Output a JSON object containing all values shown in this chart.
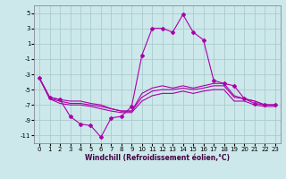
{
  "title": "",
  "xlabel": "Windchill (Refroidissement éolien,°C)",
  "bg_color": "#cce8ea",
  "grid_color": "#aacccc",
  "line_color": "#aa00aa",
  "x": [
    0,
    1,
    2,
    3,
    4,
    5,
    6,
    7,
    8,
    9,
    10,
    11,
    12,
    13,
    14,
    15,
    16,
    17,
    18,
    19,
    20,
    21,
    22,
    23
  ],
  "ylim": [
    -12,
    6
  ],
  "yticks": [
    -11,
    -9,
    -7,
    -5,
    -3,
    -1,
    1,
    3,
    5
  ],
  "xlim": [
    -0.5,
    23.5
  ],
  "series": [
    [
      -3.5,
      -6.0,
      -6.3,
      -8.5,
      -9.5,
      -9.7,
      -11.2,
      -8.7,
      -8.5,
      -7.2,
      -0.5,
      3.0,
      3.0,
      2.5,
      4.8,
      2.5,
      1.5,
      -3.8,
      -4.2,
      -4.5,
      -6.2,
      -6.8,
      -7.0,
      -7.0
    ],
    [
      -3.5,
      -6.0,
      -6.3,
      -6.5,
      -6.5,
      -6.8,
      -7.0,
      -7.5,
      -7.8,
      -7.8,
      -5.5,
      -4.8,
      -4.5,
      -4.8,
      -4.5,
      -4.8,
      -4.5,
      -4.2,
      -4.2,
      -5.8,
      -6.2,
      -6.5,
      -7.0,
      -7.0
    ],
    [
      -3.5,
      -6.2,
      -6.5,
      -6.8,
      -6.8,
      -7.0,
      -7.2,
      -7.5,
      -7.8,
      -7.8,
      -6.0,
      -5.2,
      -5.0,
      -5.0,
      -4.8,
      -5.0,
      -4.8,
      -4.5,
      -4.5,
      -6.0,
      -6.2,
      -6.5,
      -7.0,
      -7.0
    ],
    [
      -3.5,
      -6.2,
      -6.8,
      -7.0,
      -7.0,
      -7.2,
      -7.5,
      -7.8,
      -8.0,
      -8.0,
      -6.5,
      -5.8,
      -5.5,
      -5.5,
      -5.2,
      -5.5,
      -5.2,
      -5.0,
      -5.0,
      -6.5,
      -6.5,
      -7.0,
      -7.2,
      -7.2
    ]
  ],
  "marker_series": 0,
  "marker_style": "D",
  "marker_size": 2.0,
  "linewidth": 0.8,
  "xlabel_fontsize": 5.5,
  "tick_fontsize": 5.0,
  "xlabel_color": "#440044",
  "xlabel_fontweight": "bold"
}
